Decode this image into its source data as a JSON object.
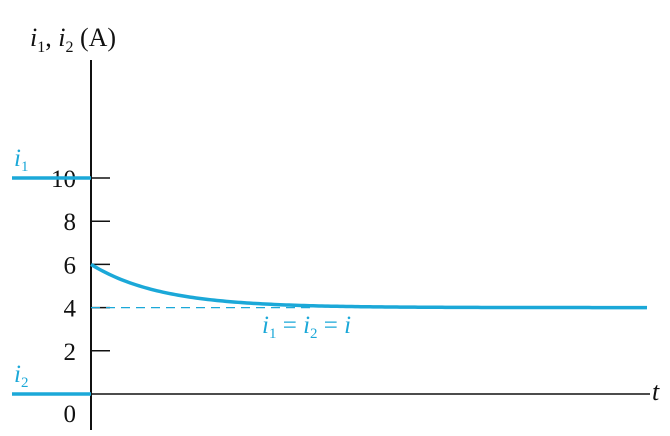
{
  "chart_data": {
    "type": "line",
    "ylabel": {
      "i1": "i",
      "sub1": "1",
      "sep": ", ",
      "i2": "i",
      "sub2": "2",
      "unit": " (A)"
    },
    "xlabel": "t",
    "yticks": [
      0,
      2,
      4,
      6,
      8,
      10
    ],
    "ylim": [
      0,
      10
    ],
    "grid": false,
    "series": [
      {
        "name": "i1 = i2 = i",
        "description": "decays from 6 to 4",
        "start": 6,
        "end": 4
      }
    ],
    "levels": [
      {
        "label": "i",
        "sub": "1",
        "value": 10
      },
      {
        "label": "i",
        "sub": "2",
        "value": 0
      }
    ],
    "reference_line": {
      "value": 4,
      "style": "dashed"
    },
    "annotation": {
      "a": "i",
      "a_sub": "1",
      "eq1": " = ",
      "b": "i",
      "b_sub": "2",
      "eq2": " = ",
      "c": "i"
    },
    "colors": {
      "series": "#1ba8d8",
      "axis": "#111111"
    }
  }
}
